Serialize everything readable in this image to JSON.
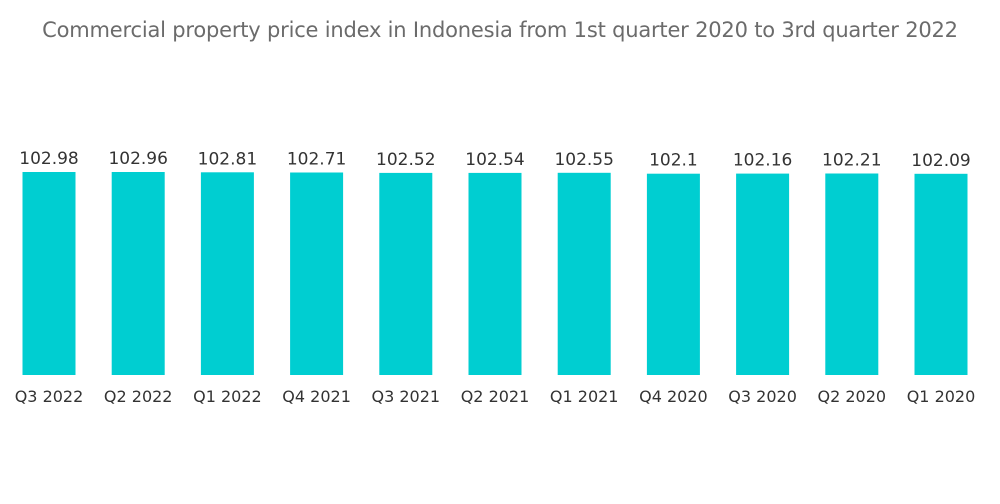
{
  "title": "Commercial property price index in Indonesia from 1st quarter 2020 to 3rd quarter 2022",
  "colors": {
    "bar": "#00CED1",
    "title_text": "#6b6b6b",
    "label_text": "#333333"
  },
  "chart_data": {
    "type": "bar",
    "title": "Commercial property price index in Indonesia from 1st quarter 2020 to 3rd quarter 2022",
    "xlabel": "",
    "ylabel": "",
    "categories": [
      "Q3 2022",
      "Q2 2022",
      "Q1 2022",
      "Q4 2021",
      "Q3 2021",
      "Q2 2021",
      "Q1 2021",
      "Q4 2020",
      "Q3 2020",
      "Q2 2020",
      "Q1 2020"
    ],
    "values": [
      102.98,
      102.96,
      102.81,
      102.71,
      102.52,
      102.54,
      102.55,
      102.1,
      102.16,
      102.21,
      102.09
    ],
    "data_labels": [
      "102.98",
      "102.96",
      "102.81",
      "102.71",
      "102.52",
      "102.54",
      "102.55",
      "102.1",
      "102.16",
      "102.21",
      "102.09"
    ],
    "ylim": [
      0,
      102.98
    ],
    "grid": false,
    "legend": "none"
  }
}
